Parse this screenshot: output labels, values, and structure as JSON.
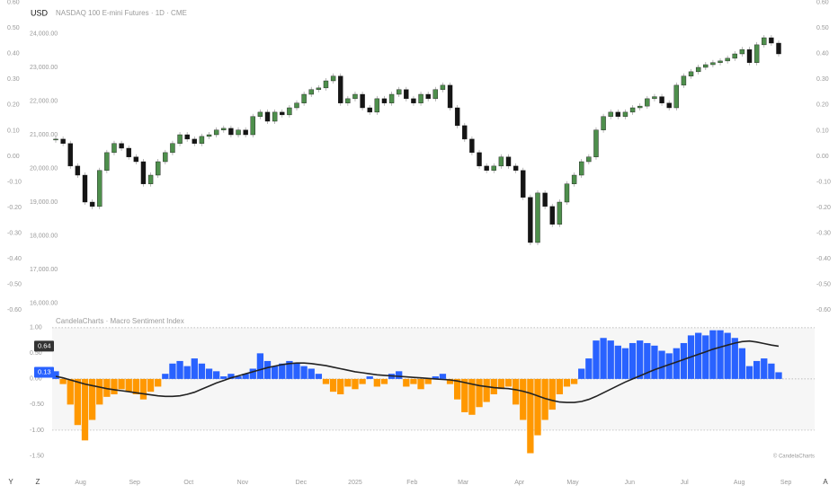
{
  "currency": "USD",
  "toolbar_left": [
    "Y",
    "Z"
  ],
  "toolbar_right": "A",
  "chart_data": [
    {
      "type": "candlestick",
      "title": "NASDAQ 100 E-mini Futures · 1D · CME",
      "up_color": "#4e8f4c",
      "down_color": "#151515",
      "wick_color": "#9a9a9a",
      "close": [
        20880,
        20750,
        20080,
        19810,
        19010,
        18880,
        19950,
        20480,
        20750,
        20610,
        20350,
        20210,
        19550,
        19810,
        20210,
        20480,
        20750,
        21010,
        20880,
        20750,
        20960,
        21010,
        21150,
        21200,
        21010,
        21150,
        21010,
        21550,
        21680,
        21410,
        21680,
        21600,
        21810,
        21950,
        22210,
        22350,
        22400,
        22610,
        22750,
        21950,
        22080,
        22210,
        21810,
        21680,
        22080,
        21950,
        22210,
        22350,
        22080,
        21950,
        22210,
        22080,
        22350,
        22480,
        21810,
        21280,
        20880,
        20480,
        20080,
        19950,
        20080,
        20350,
        20080,
        19950,
        19150,
        17810,
        19280,
        18880,
        18350,
        19010,
        19550,
        19810,
        20210,
        20350,
        21150,
        21550,
        21680,
        21550,
        21680,
        21810,
        21860,
        22080,
        22140,
        21950,
        21810,
        22480,
        22750,
        22880,
        23010,
        23090,
        23150,
        23200,
        23280,
        23410,
        23540,
        23150,
        23680,
        23890,
        23730,
        23410
      ],
      "ylim": [
        15810,
        25010
      ],
      "yticks": [
        {
          "value": 16000,
          "label": "16,000.00"
        },
        {
          "value": 17000,
          "label": "17,000.00"
        },
        {
          "value": 18000,
          "label": "18,000.00"
        },
        {
          "value": 19000,
          "label": "19,000.00"
        },
        {
          "value": 20000,
          "label": "20,000.00"
        },
        {
          "value": 21000,
          "label": "21,000.00"
        },
        {
          "value": 22000,
          "label": "22,000.00"
        },
        {
          "value": 23000,
          "label": "23,000.00"
        },
        {
          "value": 24000,
          "label": "24,000.00"
        }
      ],
      "y2lim": [
        -0.6,
        0.61
      ],
      "y2ticks": [
        {
          "value": -0.6,
          "label": "-0.60"
        },
        {
          "value": -0.5,
          "label": "-0.50"
        },
        {
          "value": -0.4,
          "label": "-0.40"
        },
        {
          "value": -0.3,
          "label": "-0.30"
        },
        {
          "value": -0.2,
          "label": "-0.20"
        },
        {
          "value": -0.1,
          "label": "-0.10"
        },
        {
          "value": 0,
          "label": "0.00"
        },
        {
          "value": 0.1,
          "label": "0.10"
        },
        {
          "value": 0.2,
          "label": "0.20"
        },
        {
          "value": 0.3,
          "label": "0.30"
        },
        {
          "value": 0.4,
          "label": "0.40"
        },
        {
          "value": 0.5,
          "label": "0.50"
        },
        {
          "value": 0.6,
          "label": "0.60"
        }
      ]
    },
    {
      "type": "bar_line",
      "title": "CandelaCharts · Macro Sentiment Index",
      "watermark": "© CandelaCharts",
      "series": [
        {
          "type": "bar",
          "pos_color": "#2962ff",
          "neg_color": "#ff9800",
          "values": [
            0.15,
            -0.1,
            -0.5,
            -0.9,
            -1.2,
            -0.8,
            -0.5,
            -0.35,
            -0.3,
            -0.2,
            -0.25,
            -0.3,
            -0.4,
            -0.25,
            -0.15,
            0.1,
            0.3,
            0.35,
            0.25,
            0.4,
            0.3,
            0.2,
            0.15,
            0.05,
            0.1,
            0.05,
            0.1,
            0.2,
            0.5,
            0.35,
            0.25,
            0.3,
            0.35,
            0.3,
            0.25,
            0.2,
            0.1,
            -0.1,
            -0.25,
            -0.3,
            -0.15,
            -0.2,
            -0.1,
            0.05,
            -0.15,
            -0.1,
            0.1,
            0.15,
            -0.15,
            -0.1,
            -0.2,
            -0.1,
            0.05,
            0.1,
            -0.1,
            -0.4,
            -0.65,
            -0.7,
            -0.55,
            -0.45,
            -0.3,
            -0.2,
            -0.15,
            -0.5,
            -0.8,
            -1.45,
            -1.1,
            -0.8,
            -0.6,
            -0.3,
            -0.15,
            -0.1,
            0.2,
            0.4,
            0.75,
            0.8,
            0.75,
            0.65,
            0.6,
            0.7,
            0.75,
            0.7,
            0.65,
            0.55,
            0.5,
            0.6,
            0.7,
            0.85,
            0.9,
            0.85,
            0.95,
            0.95,
            0.9,
            0.8,
            0.6,
            0.25,
            0.35,
            0.4,
            0.3,
            0.13
          ]
        },
        {
          "type": "line",
          "color": "#222222",
          "values": [
            0.05,
            0.02,
            -0.02,
            -0.06,
            -0.1,
            -0.13,
            -0.16,
            -0.19,
            -0.21,
            -0.23,
            -0.25,
            -0.27,
            -0.29,
            -0.31,
            -0.33,
            -0.34,
            -0.34,
            -0.33,
            -0.3,
            -0.26,
            -0.2,
            -0.14,
            -0.08,
            -0.03,
            0.02,
            0.06,
            0.1,
            0.14,
            0.18,
            0.22,
            0.25,
            0.28,
            0.3,
            0.31,
            0.31,
            0.3,
            0.28,
            0.26,
            0.23,
            0.2,
            0.17,
            0.14,
            0.12,
            0.1,
            0.08,
            0.07,
            0.06,
            0.05,
            0.04,
            0.03,
            0.02,
            0.01,
            0.0,
            -0.01,
            -0.02,
            -0.04,
            -0.07,
            -0.1,
            -0.13,
            -0.15,
            -0.17,
            -0.18,
            -0.19,
            -0.21,
            -0.24,
            -0.28,
            -0.33,
            -0.38,
            -0.42,
            -0.45,
            -0.46,
            -0.46,
            -0.44,
            -0.4,
            -0.34,
            -0.27,
            -0.2,
            -0.13,
            -0.06,
            0.0,
            0.06,
            0.12,
            0.18,
            0.23,
            0.28,
            0.33,
            0.38,
            0.43,
            0.48,
            0.53,
            0.58,
            0.62,
            0.66,
            0.7,
            0.73,
            0.74,
            0.72,
            0.69,
            0.66,
            0.64
          ]
        }
      ],
      "ylim": [
        -1.58,
        1.05
      ],
      "yticks": [
        {
          "value": -1.5,
          "label": "-1.50"
        },
        {
          "value": -1,
          "label": "-1.00"
        },
        {
          "value": -0.5,
          "label": "-0.50"
        },
        {
          "value": 0,
          "label": "0.00"
        },
        {
          "value": 0.5,
          "label": "0.50"
        },
        {
          "value": 1,
          "label": "1.00"
        }
      ],
      "band": [
        -1,
        1
      ],
      "dotted_lines": [
        -1,
        0,
        1
      ],
      "xticks": [
        {
          "value": 3.4,
          "label": "Aug"
        },
        {
          "value": 10.8,
          "label": "Sep"
        },
        {
          "value": 18.2,
          "label": "Oct"
        },
        {
          "value": 25.6,
          "label": "Nov"
        },
        {
          "value": 33.6,
          "label": "Dec"
        },
        {
          "value": 41,
          "label": "2025"
        },
        {
          "value": 48.8,
          "label": "Feb"
        },
        {
          "value": 55.8,
          "label": "Mar"
        },
        {
          "value": 63.5,
          "label": "Apr"
        },
        {
          "value": 70.8,
          "label": "May"
        },
        {
          "value": 78.6,
          "label": "Jun"
        },
        {
          "value": 86.1,
          "label": "Jul"
        },
        {
          "value": 93.6,
          "label": "Aug"
        },
        {
          "value": 100,
          "label": "Sep"
        }
      ]
    }
  ]
}
